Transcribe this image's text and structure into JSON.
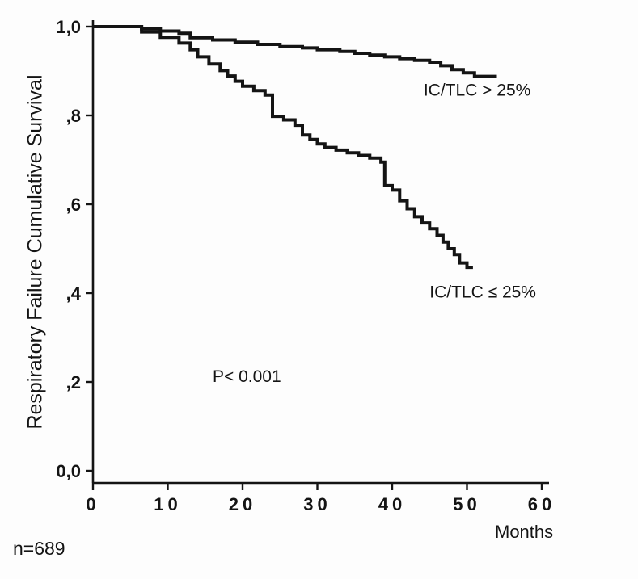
{
  "labels": {
    "ylabel": "Respiratory Failure Cumulative Survival",
    "xlabel": "Months",
    "n": "n=689"
  },
  "chart_data": {
    "type": "line",
    "style": "kaplan-meier-step",
    "title": "",
    "xlabel": "Months",
    "ylabel": "Respiratory Failure Cumulative Survival",
    "footnote": "n=689",
    "xlim": [
      0,
      60
    ],
    "ylim": [
      0.0,
      1.0
    ],
    "grid": false,
    "line_color": "#141414",
    "x_ticks": {
      "values": [
        0,
        10,
        20,
        30,
        40,
        50,
        60
      ],
      "labels": [
        "0",
        "10",
        "20",
        "30",
        "40",
        "50",
        "60"
      ]
    },
    "y_ticks": {
      "values": [
        1.0,
        0.8,
        0.6,
        0.4,
        0.2,
        0.0
      ],
      "labels": [
        "1,0",
        ",8",
        ",6",
        ",4",
        ",2",
        "0,0"
      ]
    },
    "annotations": [
      {
        "text": "P< 0.001",
        "x": 16,
        "y": 0.2
      }
    ],
    "series": [
      {
        "name": "IC/TLC > 25%",
        "label": {
          "text": "IC/TLC > 25%",
          "x": 44.2,
          "y": 0.845
        },
        "points": [
          [
            0,
            1.0
          ],
          [
            6.5,
            0.995
          ],
          [
            9,
            0.99
          ],
          [
            11.5,
            0.985
          ],
          [
            13,
            0.975
          ],
          [
            16,
            0.97
          ],
          [
            19,
            0.965
          ],
          [
            22,
            0.96
          ],
          [
            25,
            0.955
          ],
          [
            28,
            0.952
          ],
          [
            30,
            0.948
          ],
          [
            33,
            0.944
          ],
          [
            35,
            0.94
          ],
          [
            37,
            0.936
          ],
          [
            39,
            0.932
          ],
          [
            41,
            0.928
          ],
          [
            43,
            0.924
          ],
          [
            45,
            0.92
          ],
          [
            46.5,
            0.912
          ],
          [
            48,
            0.903
          ],
          [
            49.5,
            0.896
          ],
          [
            51,
            0.888
          ],
          [
            54,
            0.888
          ]
        ]
      },
      {
        "name": "IC/TLC ≤ 25%",
        "label": {
          "text": "IC/TLC ≤ 25%",
          "x": 45,
          "y": 0.39
        },
        "points": [
          [
            0,
            1.0
          ],
          [
            6.5,
            0.988
          ],
          [
            9,
            0.976
          ],
          [
            11.5,
            0.963
          ],
          [
            13,
            0.948
          ],
          [
            14,
            0.932
          ],
          [
            15.5,
            0.916
          ],
          [
            17,
            0.901
          ],
          [
            18,
            0.889
          ],
          [
            19,
            0.877
          ],
          [
            20,
            0.866
          ],
          [
            21.5,
            0.856
          ],
          [
            23,
            0.846
          ],
          [
            24,
            0.798
          ],
          [
            25.5,
            0.79
          ],
          [
            27,
            0.778
          ],
          [
            28,
            0.756
          ],
          [
            29,
            0.746
          ],
          [
            30,
            0.736
          ],
          [
            31,
            0.728
          ],
          [
            32.5,
            0.722
          ],
          [
            34,
            0.716
          ],
          [
            35.5,
            0.71
          ],
          [
            37,
            0.704
          ],
          [
            38.5,
            0.695
          ],
          [
            39,
            0.642
          ],
          [
            40,
            0.632
          ],
          [
            41,
            0.608
          ],
          [
            42,
            0.59
          ],
          [
            43,
            0.572
          ],
          [
            44,
            0.558
          ],
          [
            45,
            0.545
          ],
          [
            46,
            0.53
          ],
          [
            46.8,
            0.515
          ],
          [
            47.5,
            0.5
          ],
          [
            48.3,
            0.487
          ],
          [
            49,
            0.468
          ],
          [
            50,
            0.458
          ],
          [
            50.8,
            0.458
          ]
        ]
      }
    ]
  }
}
